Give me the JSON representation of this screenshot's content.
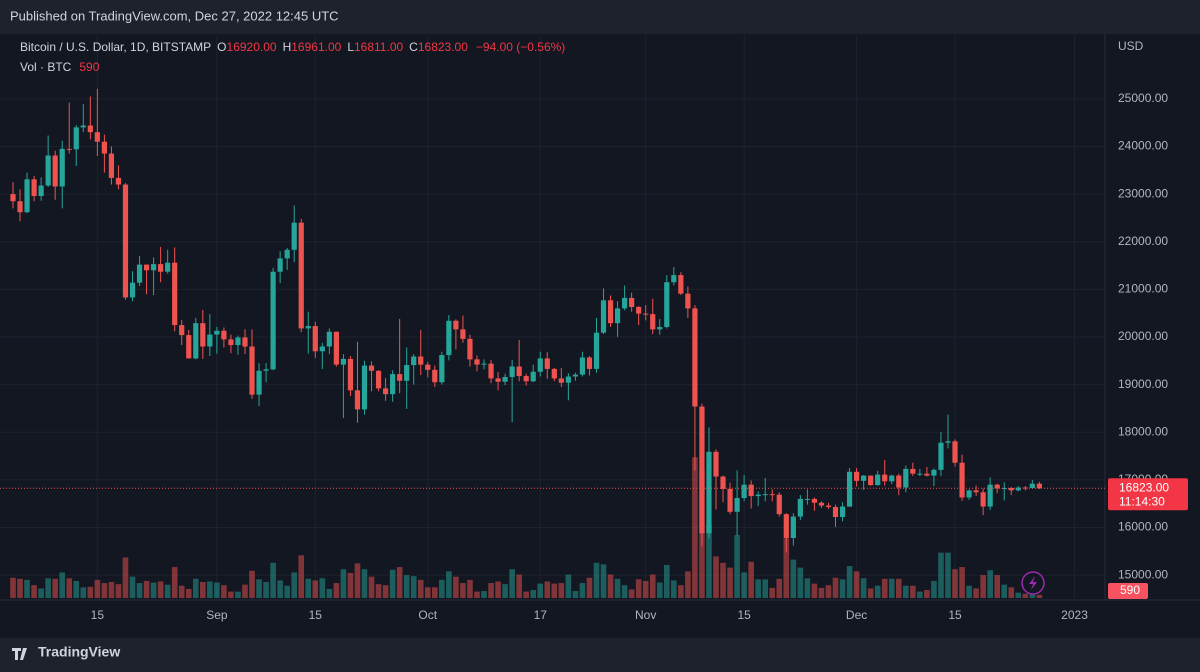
{
  "header": {
    "published": "Published on TradingView.com, Dec 27, 2022 12:45 UTC",
    "symbol": "Bitcoin / U.S. Dollar, 1D, BITSTAMP",
    "o_label": "O",
    "o": "16920.00",
    "h_label": "H",
    "h": "16961.00",
    "l_label": "L",
    "l": "16811.00",
    "c_label": "C",
    "c": "16823.00",
    "change": "−94.00 (−0.56%)",
    "vol_label": "Vol · BTC"
  },
  "footer": {
    "brand": "TradingView"
  },
  "ui": {
    "currency": "USD",
    "last_price_label": "16823.00",
    "countdown": "11:14:30"
  },
  "chart_data": {
    "type": "candlestick",
    "up_color": "#26a69a",
    "down_color": "#ef5350",
    "ylim": [
      14520,
      26340
    ],
    "volume_lim": [
      0,
      30000
    ],
    "grid": true,
    "yticks": [
      {
        "value": 15000,
        "label": "15000.00"
      },
      {
        "value": 16000,
        "label": "16000.00"
      },
      {
        "value": 17000,
        "label": "17000.00"
      },
      {
        "value": 18000,
        "label": "18000.00"
      },
      {
        "value": 19000,
        "label": "19000.00"
      },
      {
        "value": 20000,
        "label": "20000.00"
      },
      {
        "value": 21000,
        "label": "21000.00"
      },
      {
        "value": 22000,
        "label": "22000.00"
      },
      {
        "value": 23000,
        "label": "23000.00"
      },
      {
        "value": 24000,
        "label": "24000.00"
      },
      {
        "value": 25000,
        "label": "25000.00"
      }
    ],
    "xticks": [
      {
        "value": 12,
        "label": "15"
      },
      {
        "value": 29,
        "label": "Sep"
      },
      {
        "value": 43,
        "label": "15"
      },
      {
        "value": 59,
        "label": "Oct"
      },
      {
        "value": 75,
        "label": "17"
      },
      {
        "value": 90,
        "label": "Nov"
      },
      {
        "value": 104,
        "label": "15"
      },
      {
        "value": 120,
        "label": "Dec"
      },
      {
        "value": 134,
        "label": "15"
      },
      {
        "value": 151,
        "label": "2023"
      }
    ],
    "candles": [
      [
        23000,
        23250,
        22700,
        22850
      ],
      [
        22850,
        23100,
        22430,
        22620
      ],
      [
        22620,
        23450,
        22600,
        23310
      ],
      [
        23310,
        23380,
        22850,
        22960
      ],
      [
        22960,
        23350,
        22860,
        23180
      ],
      [
        23180,
        24230,
        23150,
        23810
      ],
      [
        23810,
        23910,
        22880,
        23160
      ],
      [
        23160,
        24120,
        22700,
        23950
      ],
      [
        23950,
        24920,
        23850,
        23940
      ],
      [
        23940,
        24450,
        23590,
        24400
      ],
      [
        24400,
        24890,
        24300,
        24440
      ],
      [
        24440,
        25050,
        24150,
        24300
      ],
      [
        24300,
        25210,
        23800,
        24100
      ],
      [
        24100,
        24250,
        23450,
        23850
      ],
      [
        23850,
        24000,
        23200,
        23340
      ],
      [
        23340,
        23600,
        23100,
        23200
      ],
      [
        23200,
        23230,
        20780,
        20830
      ],
      [
        20830,
        21380,
        20750,
        21140
      ],
      [
        21140,
        21700,
        21070,
        21520
      ],
      [
        21520,
        21520,
        20900,
        21400
      ],
      [
        21400,
        21670,
        20880,
        21530
      ],
      [
        21530,
        21890,
        21150,
        21370
      ],
      [
        21370,
        21830,
        21330,
        21560
      ],
      [
        21560,
        21880,
        20120,
        20250
      ],
      [
        20250,
        20360,
        19830,
        20040
      ],
      [
        20040,
        20150,
        19550,
        19550
      ],
      [
        19550,
        20400,
        19530,
        20290
      ],
      [
        20290,
        20570,
        19540,
        19800
      ],
      [
        19800,
        20480,
        19600,
        20050
      ],
      [
        20050,
        20210,
        19650,
        20130
      ],
      [
        20130,
        20200,
        19780,
        19950
      ],
      [
        19950,
        20050,
        19660,
        19830
      ],
      [
        19830,
        20030,
        19630,
        19990
      ],
      [
        19990,
        20160,
        19640,
        19800
      ],
      [
        19800,
        20160,
        18700,
        18790
      ],
      [
        18790,
        19450,
        18550,
        19290
      ],
      [
        19290,
        19450,
        19050,
        19320
      ],
      [
        19320,
        21450,
        19300,
        21370
      ],
      [
        21370,
        21800,
        21130,
        21650
      ],
      [
        21650,
        21870,
        21410,
        21830
      ],
      [
        21830,
        22760,
        21570,
        22400
      ],
      [
        22400,
        22480,
        20100,
        20180
      ],
      [
        20180,
        20530,
        19650,
        20230
      ],
      [
        20230,
        20320,
        19560,
        19700
      ],
      [
        19700,
        19880,
        19330,
        19800
      ],
      [
        19800,
        20180,
        19640,
        20110
      ],
      [
        20110,
        20110,
        19380,
        19420
      ],
      [
        19420,
        19640,
        18300,
        19540
      ],
      [
        19540,
        19600,
        18760,
        18880
      ],
      [
        18880,
        19900,
        18200,
        18480
      ],
      [
        18480,
        19500,
        18370,
        19400
      ],
      [
        19400,
        19490,
        18860,
        19290
      ],
      [
        19290,
        19300,
        18860,
        18920
      ],
      [
        18920,
        19140,
        18660,
        18800
      ],
      [
        18800,
        19300,
        18640,
        19220
      ],
      [
        19220,
        20380,
        18820,
        19080
      ],
      [
        19080,
        19780,
        18490,
        19410
      ],
      [
        19410,
        19640,
        19000,
        19590
      ],
      [
        19590,
        20150,
        19200,
        19420
      ],
      [
        19420,
        19480,
        19150,
        19310
      ],
      [
        19310,
        19400,
        18950,
        19050
      ],
      [
        19050,
        19690,
        19000,
        19620
      ],
      [
        19620,
        20460,
        19510,
        20340
      ],
      [
        20340,
        20370,
        19740,
        20160
      ],
      [
        20160,
        20450,
        19880,
        19960
      ],
      [
        19960,
        20050,
        19380,
        19530
      ],
      [
        19530,
        19610,
        19280,
        19420
      ],
      [
        19420,
        19530,
        19320,
        19440
      ],
      [
        19440,
        19520,
        19030,
        19130
      ],
      [
        19130,
        19260,
        18880,
        19060
      ],
      [
        19060,
        19230,
        18990,
        19160
      ],
      [
        19160,
        19520,
        18210,
        19380
      ],
      [
        19380,
        19940,
        19070,
        19180
      ],
      [
        19180,
        19230,
        18980,
        19070
      ],
      [
        19070,
        19420,
        19050,
        19270
      ],
      [
        19270,
        19690,
        19170,
        19550
      ],
      [
        19550,
        19680,
        19120,
        19330
      ],
      [
        19330,
        19350,
        19070,
        19130
      ],
      [
        19130,
        19350,
        18950,
        19040
      ],
      [
        19040,
        19240,
        18670,
        19170
      ],
      [
        19170,
        19250,
        19080,
        19210
      ],
      [
        19210,
        19690,
        19170,
        19570
      ],
      [
        19570,
        19600,
        19190,
        19330
      ],
      [
        19330,
        20400,
        19250,
        20090
      ],
      [
        20090,
        21020,
        20060,
        20770
      ],
      [
        20770,
        20870,
        20210,
        20290
      ],
      [
        20290,
        20750,
        20000,
        20600
      ],
      [
        20600,
        21080,
        20560,
        20820
      ],
      [
        20820,
        20930,
        20530,
        20630
      ],
      [
        20630,
        20650,
        20250,
        20490
      ],
      [
        20490,
        20670,
        20350,
        20480
      ],
      [
        20480,
        20800,
        20060,
        20160
      ],
      [
        20160,
        20380,
        20050,
        20210
      ],
      [
        20210,
        21300,
        20180,
        21150
      ],
      [
        21150,
        21470,
        21080,
        21300
      ],
      [
        21300,
        21360,
        20880,
        20910
      ],
      [
        20910,
        21060,
        20400,
        20600
      ],
      [
        20600,
        20670,
        17200,
        18540
      ],
      [
        18540,
        18600,
        15600,
        15880
      ],
      [
        15880,
        18100,
        15770,
        17590
      ],
      [
        17590,
        17640,
        16380,
        17070
      ],
      [
        17070,
        17090,
        16530,
        16810
      ],
      [
        16810,
        16940,
        16280,
        16330
      ],
      [
        16330,
        17200,
        15830,
        16620
      ],
      [
        16620,
        17100,
        16550,
        16900
      ],
      [
        16900,
        16990,
        16400,
        16660
      ],
      [
        16660,
        16760,
        16450,
        16690
      ],
      [
        16690,
        17040,
        16550,
        16700
      ],
      [
        16700,
        16800,
        16550,
        16690
      ],
      [
        16690,
        16740,
        16230,
        16280
      ],
      [
        16280,
        16300,
        15480,
        15780
      ],
      [
        15780,
        16300,
        15620,
        16230
      ],
      [
        16230,
        16680,
        16160,
        16600
      ],
      [
        16600,
        16800,
        16480,
        16600
      ],
      [
        16600,
        16630,
        16350,
        16520
      ],
      [
        16520,
        16550,
        16410,
        16460
      ],
      [
        16460,
        16520,
        16390,
        16430
      ],
      [
        16430,
        16480,
        16010,
        16220
      ],
      [
        16220,
        16530,
        16130,
        16440
      ],
      [
        16440,
        17250,
        16430,
        17170
      ],
      [
        17170,
        17250,
        16860,
        16980
      ],
      [
        16980,
        17100,
        16790,
        17090
      ],
      [
        17090,
        17090,
        16880,
        16890
      ],
      [
        16890,
        17190,
        16880,
        17110
      ],
      [
        17110,
        17420,
        16880,
        16970
      ],
      [
        16970,
        17110,
        16910,
        17090
      ],
      [
        17090,
        17130,
        16680,
        16840
      ],
      [
        16840,
        17300,
        16740,
        17230
      ],
      [
        17230,
        17360,
        17080,
        17130
      ],
      [
        17130,
        17230,
        17080,
        17130
      ],
      [
        17130,
        17270,
        17070,
        17090
      ],
      [
        17090,
        17240,
        16870,
        17210
      ],
      [
        17210,
        18000,
        17080,
        17780
      ],
      [
        17780,
        18370,
        17660,
        17810
      ],
      [
        17810,
        17850,
        17280,
        17360
      ],
      [
        17360,
        17530,
        16560,
        16630
      ],
      [
        16630,
        16800,
        16580,
        16780
      ],
      [
        16780,
        16880,
        16660,
        16740
      ],
      [
        16740,
        16820,
        16260,
        16440
      ],
      [
        16440,
        17050,
        16370,
        16900
      ],
      [
        16900,
        16920,
        16720,
        16820
      ],
      [
        16820,
        16950,
        16570,
        16830
      ],
      [
        16830,
        16850,
        16680,
        16780
      ],
      [
        16780,
        16870,
        16760,
        16840
      ],
      [
        16840,
        16870,
        16780,
        16830
      ],
      [
        16830,
        17000,
        16810,
        16920
      ],
      [
        16920,
        16961,
        16811,
        16823
      ]
    ],
    "volume": [
      3800,
      3600,
      3400,
      2400,
      1800,
      3700,
      3600,
      4800,
      3700,
      3200,
      2000,
      2100,
      3400,
      2800,
      3000,
      2600,
      7600,
      4000,
      2800,
      3200,
      2900,
      3100,
      2500,
      5800,
      2300,
      1700,
      3600,
      3000,
      3100,
      2900,
      2400,
      1200,
      1200,
      2500,
      5100,
      3500,
      3000,
      6600,
      3300,
      2300,
      4800,
      8000,
      3600,
      3300,
      3700,
      1700,
      2800,
      5400,
      4700,
      6500,
      5400,
      4000,
      2600,
      2400,
      5300,
      5800,
      4300,
      4100,
      3400,
      2000,
      2000,
      3400,
      5000,
      4000,
      2800,
      3400,
      1200,
      1300,
      2800,
      3100,
      2600,
      5400,
      4400,
      1200,
      1500,
      2700,
      3100,
      2700,
      2800,
      4400,
      1300,
      2800,
      3800,
      6600,
      6300,
      4400,
      3600,
      2400,
      1600,
      3500,
      3200,
      4400,
      2900,
      6200,
      3300,
      2400,
      5000,
      26400,
      24000,
      13700,
      7800,
      6600,
      5700,
      11800,
      4800,
      6800,
      3500,
      3500,
      1900,
      3600,
      11200,
      7200,
      5700,
      3700,
      2700,
      1900,
      2400,
      3800,
      3500,
      6000,
      5000,
      3700,
      1800,
      2300,
      3600,
      3600,
      3600,
      2300,
      2300,
      1200,
      1500,
      3200,
      8500,
      8500,
      5400,
      5800,
      2300,
      1800,
      4300,
      5200,
      4300,
      2500,
      2000,
      1000,
      800,
      1200,
      590
    ]
  }
}
